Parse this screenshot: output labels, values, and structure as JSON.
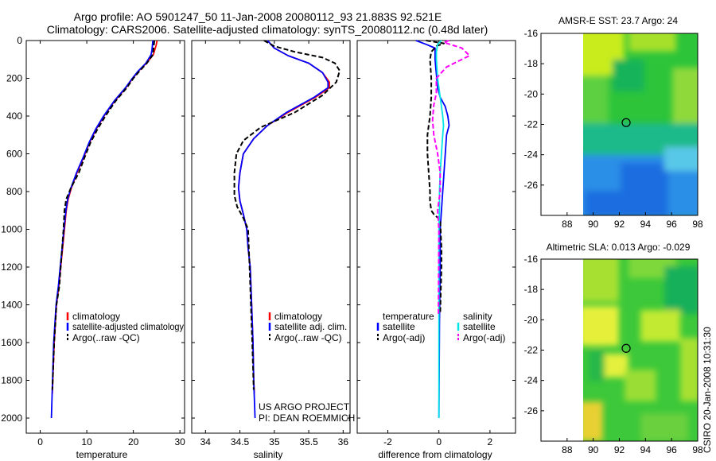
{
  "header": {
    "line1": "Argo profile: AO 5901247_50 11-Jan-2008 20080112_93 21.883S 92.521E",
    "line2": "Climatology: CARS2006. Satellite-adjusted climatology: synTS_20080112.nc (0.48d later)"
  },
  "side_caption": "CSIRO 20-Jan-2008 10:31:30",
  "colors": {
    "climatology": "#ff0000",
    "satellite": "#0000ff",
    "argo": "#000000",
    "sal_satellite": "#00e6e6",
    "sal_argo": "#ff00ff"
  },
  "chart_data": [
    {
      "type": "line",
      "id": "temperature",
      "xlabel": "temperature",
      "ylabel": "",
      "xlim": [
        -3,
        31
      ],
      "ylim": [
        2080,
        0
      ],
      "xticks": [
        0,
        10,
        20,
        30
      ],
      "yticks": [
        0,
        200,
        400,
        600,
        800,
        1000,
        1200,
        1400,
        1600,
        1800,
        2000
      ],
      "series": [
        {
          "name": "climatology",
          "style": "solid",
          "color": "#ff0000",
          "x": [
            25.1,
            24.9,
            24.6,
            24.3,
            22.8,
            21.2,
            19.9,
            18.4,
            16.0,
            13.7,
            12.0,
            10.6,
            9.3,
            7.9,
            6.7,
            6.0,
            5.6,
            5.2,
            4.8,
            4.4,
            4.0,
            3.5,
            3.0,
            2.6
          ],
          "y": [
            0,
            25,
            50,
            75,
            120,
            160,
            200,
            250,
            320,
            400,
            470,
            540,
            620,
            700,
            780,
            840,
            900,
            1000,
            1100,
            1200,
            1300,
            1400,
            1600,
            1870
          ]
        },
        {
          "name": "satellite-adjusted climatology",
          "style": "solid",
          "color": "#0000ff",
          "x": [
            24.2,
            24.1,
            24.0,
            23.8,
            22.7,
            21.1,
            19.8,
            18.3,
            15.9,
            13.6,
            11.9,
            10.5,
            9.2,
            7.8,
            6.6,
            5.9,
            5.5,
            5.1,
            4.7,
            4.3,
            3.9,
            3.4,
            2.9,
            2.4
          ],
          "y": [
            0,
            25,
            50,
            75,
            120,
            160,
            200,
            250,
            320,
            400,
            470,
            540,
            620,
            700,
            780,
            840,
            900,
            1000,
            1100,
            1200,
            1300,
            1400,
            1600,
            2000
          ]
        },
        {
          "name": "Argo(..raw -QC)",
          "style": "dashed",
          "color": "#000000",
          "x": [
            24.5,
            24.4,
            24.3,
            24.2,
            22.9,
            21.4,
            20.0,
            18.6,
            16.2,
            14.0,
            12.3,
            10.8,
            9.5,
            8.3,
            6.6,
            5.6,
            5.2,
            5.0,
            4.7,
            4.4,
            4.1,
            3.5,
            3.0,
            2.6
          ],
          "y": [
            0,
            25,
            50,
            75,
            120,
            160,
            200,
            250,
            320,
            400,
            470,
            540,
            620,
            700,
            780,
            840,
            900,
            1000,
            1100,
            1200,
            1300,
            1400,
            1600,
            1850
          ]
        }
      ],
      "legend": {
        "placement": "bottom-right",
        "entries": [
          "climatology",
          "satellite-adjusted climatology",
          "Argo(..raw -QC)"
        ]
      }
    },
    {
      "type": "line",
      "id": "salinity",
      "xlabel": "salinity",
      "ylabel": "",
      "xlim": [
        33.8,
        36.1
      ],
      "ylim": [
        2080,
        0
      ],
      "xticks": [
        34,
        34.5,
        35,
        35.5,
        36
      ],
      "xtick_labels": [
        "34",
        "34.5",
        "35",
        "35.5",
        "36"
      ],
      "series": [
        {
          "name": "climatology",
          "style": "solid",
          "color": "#ff0000",
          "x": [
            34.9,
            35.0,
            35.2,
            35.5,
            35.7,
            35.8,
            35.8,
            35.6,
            35.2,
            34.9,
            34.7,
            34.55,
            34.5,
            34.48,
            34.5,
            34.55,
            34.6,
            34.62,
            34.65,
            34.67,
            34.69,
            34.7,
            34.71
          ],
          "y": [
            0,
            40,
            80,
            120,
            170,
            220,
            250,
            300,
            380,
            450,
            520,
            600,
            700,
            780,
            850,
            920,
            1000,
            1100,
            1200,
            1400,
            1600,
            1800,
            1870
          ]
        },
        {
          "name": "satellite adj. clim.",
          "style": "solid",
          "color": "#0000ff",
          "x": [
            34.9,
            35.0,
            35.2,
            35.5,
            35.7,
            35.78,
            35.78,
            35.58,
            35.18,
            34.9,
            34.7,
            34.55,
            34.5,
            34.48,
            34.5,
            34.55,
            34.6,
            34.62,
            34.65,
            34.67,
            34.69,
            34.7,
            34.72
          ],
          "y": [
            0,
            40,
            80,
            120,
            170,
            220,
            250,
            300,
            380,
            450,
            520,
            600,
            700,
            780,
            850,
            920,
            1000,
            1100,
            1200,
            1400,
            1600,
            1800,
            2000
          ]
        },
        {
          "name": "Argo(..raw -QC)",
          "style": "dashed",
          "color": "#000000",
          "x": [
            34.85,
            35.0,
            35.3,
            35.7,
            35.88,
            35.95,
            35.9,
            35.7,
            35.3,
            34.8,
            34.55,
            34.45,
            34.42,
            34.42,
            34.46,
            34.55,
            34.62,
            34.64,
            34.66,
            34.68,
            34.7
          ],
          "y": [
            0,
            30,
            60,
            90,
            120,
            160,
            220,
            290,
            380,
            460,
            530,
            600,
            700,
            820,
            880,
            940,
            1000,
            1200,
            1400,
            1600,
            1850
          ]
        }
      ],
      "legend": {
        "placement": "bottom-right",
        "entries": [
          "climatology",
          "satellite adj. clim.",
          "Argo(..raw -QC)"
        ]
      },
      "annotation": [
        "US ARGO PROJECT",
        "PI: DEAN ROEMMICH"
      ]
    },
    {
      "type": "line",
      "id": "difference",
      "xlabel": "difference from climatology",
      "ylabel": "",
      "xlim": [
        -3.2,
        3.0
      ],
      "ylim": [
        2080,
        0
      ],
      "xticks": [
        -2,
        0,
        2
      ],
      "series": [
        {
          "name": "temperature satellite",
          "style": "solid",
          "color": "#0000ff",
          "x": [
            -0.9,
            -0.5,
            -0.15,
            -0.15,
            -0.12,
            -0.05,
            0.05,
            0.25,
            0.35,
            0.4,
            0.3,
            0.25,
            0.2,
            0.15,
            0.1,
            0.05,
            0.05,
            0.02,
            0.0
          ],
          "y": [
            0,
            20,
            40,
            100,
            150,
            250,
            300,
            350,
            400,
            450,
            500,
            600,
            700,
            800,
            900,
            1000,
            1200,
            1500,
            2000
          ]
        },
        {
          "name": "temperature Argo(-adj)",
          "style": "dashed",
          "color": "#000000",
          "x": [
            -0.5,
            0.2,
            -0.1,
            -0.3,
            -0.35,
            -0.3,
            -0.3,
            -0.35,
            -0.45,
            -0.45,
            -0.4,
            -0.35,
            -0.35,
            -0.3,
            -0.2,
            0.05,
            0.1,
            0.1,
            0.05
          ],
          "y": [
            0,
            15,
            30,
            60,
            100,
            200,
            300,
            400,
            500,
            600,
            700,
            800,
            850,
            900,
            920,
            950,
            1100,
            1200,
            1450
          ]
        },
        {
          "name": "salinity satellite",
          "style": "solid",
          "color": "#00e6e6",
          "x": [
            0.1,
            -0.05,
            -0.1,
            -0.1,
            -0.05,
            0.0,
            0.05,
            0.1,
            0.15,
            0.18,
            0.15,
            0.1,
            0.05,
            0.02,
            0.02,
            0.0,
            0.0
          ],
          "y": [
            0,
            20,
            60,
            100,
            200,
            250,
            300,
            350,
            400,
            450,
            500,
            600,
            700,
            800,
            900,
            1000,
            2000
          ]
        },
        {
          "name": "salinity Argo(-adj)",
          "style": "dashed",
          "color": "#ff00ff",
          "x": [
            0.4,
            0.2,
            0.9,
            1.2,
            0.3,
            -0.1,
            -0.1,
            -0.2,
            -0.25,
            -0.2,
            -0.05,
            0.05,
            0.05,
            -0.05,
            0.0,
            -0.02
          ],
          "y": [
            0,
            10,
            40,
            80,
            140,
            200,
            280,
            340,
            420,
            500,
            600,
            700,
            800,
            900,
            1000,
            1450
          ]
        }
      ],
      "legend": {
        "placement": "bottom",
        "columns": [
          {
            "heading": "temperature",
            "entries": [
              "satellite",
              "Argo(-adj)"
            ]
          },
          {
            "heading": "salinity",
            "entries": [
              "satellite",
              "Argo(-adj)"
            ]
          }
        ]
      }
    },
    {
      "type": "heatmap",
      "id": "amsre-sst",
      "title": "AMSR-E SST: 23.7 Argo: 24",
      "xlim": [
        86,
        98
      ],
      "ylim": [
        -28,
        -16
      ],
      "xticks": [
        88,
        90,
        92,
        94,
        96,
        98
      ],
      "yticks": [
        -16,
        -18,
        -20,
        -22,
        -24,
        -26
      ],
      "data_xrange": [
        90,
        98
      ],
      "marker": {
        "x": 92.521,
        "y": -21.883
      }
    },
    {
      "type": "heatmap",
      "id": "altimetric-sla",
      "title": "Altimetric SLA: 0.013 Argo: -0.029",
      "xlim": [
        86,
        98
      ],
      "ylim": [
        -28,
        -16
      ],
      "xticks": [
        88,
        90,
        92,
        94,
        96,
        98
      ],
      "yticks": [
        -16,
        -18,
        -20,
        -22,
        -24,
        -26
      ],
      "data_xrange": [
        90,
        98
      ],
      "marker": {
        "x": 92.521,
        "y": -21.883
      }
    }
  ]
}
